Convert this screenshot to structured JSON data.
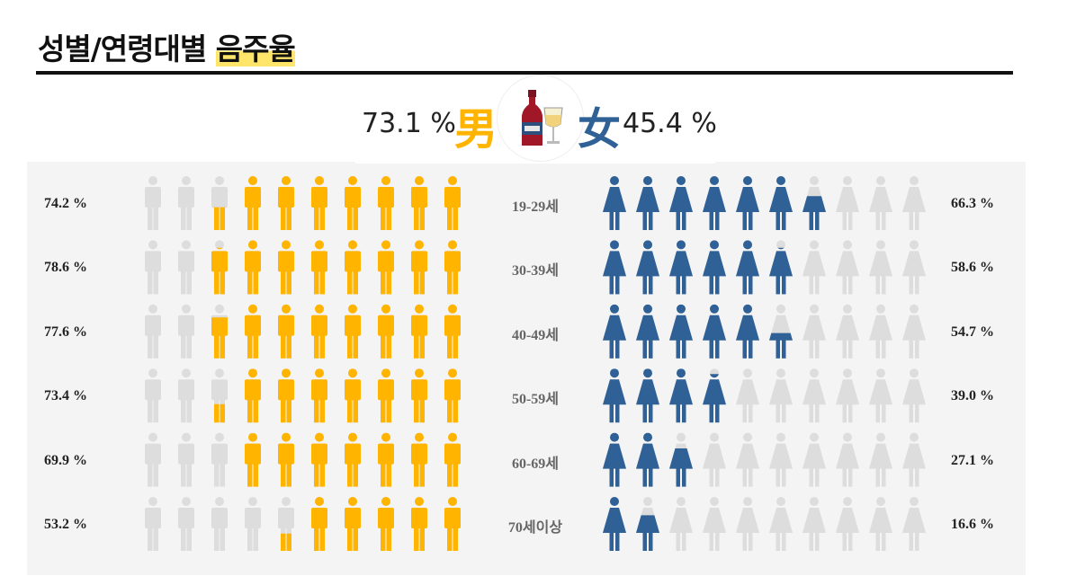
{
  "header": {
    "title_main": "성별/연령대별 ",
    "title_highlight": "음주율"
  },
  "totals": {
    "male_value": "73.1 %",
    "male_symbol": "男",
    "female_value": "45.4 %",
    "female_symbol": "女"
  },
  "colors": {
    "male": "#ffb400",
    "female": "#2f6196",
    "inactive": "#dddddd"
  },
  "icons": {
    "center": "wine-bottle-glass-icon",
    "male_figure": "male-person-icon",
    "female_figure": "female-person-icon"
  },
  "chart_data": {
    "type": "pictograph",
    "icons_per_row": 10,
    "categories": [
      "19-29세",
      "30-39세",
      "40-49세",
      "50-59세",
      "60-69세",
      "70세이상"
    ],
    "series": [
      {
        "name": "男",
        "values": [
          74.2,
          78.6,
          77.6,
          73.4,
          69.9,
          53.2
        ],
        "labels": [
          "74.2 %",
          "78.6 %",
          "77.6 %",
          "73.4 %",
          "69.9 %",
          "53.2 %"
        ]
      },
      {
        "name": "女",
        "values": [
          66.3,
          58.6,
          54.7,
          39.0,
          27.1,
          16.6
        ],
        "labels": [
          "66.3 %",
          "58.6 %",
          "54.7 %",
          "39.0 %",
          "27.1 %",
          "16.6 %"
        ]
      }
    ]
  }
}
